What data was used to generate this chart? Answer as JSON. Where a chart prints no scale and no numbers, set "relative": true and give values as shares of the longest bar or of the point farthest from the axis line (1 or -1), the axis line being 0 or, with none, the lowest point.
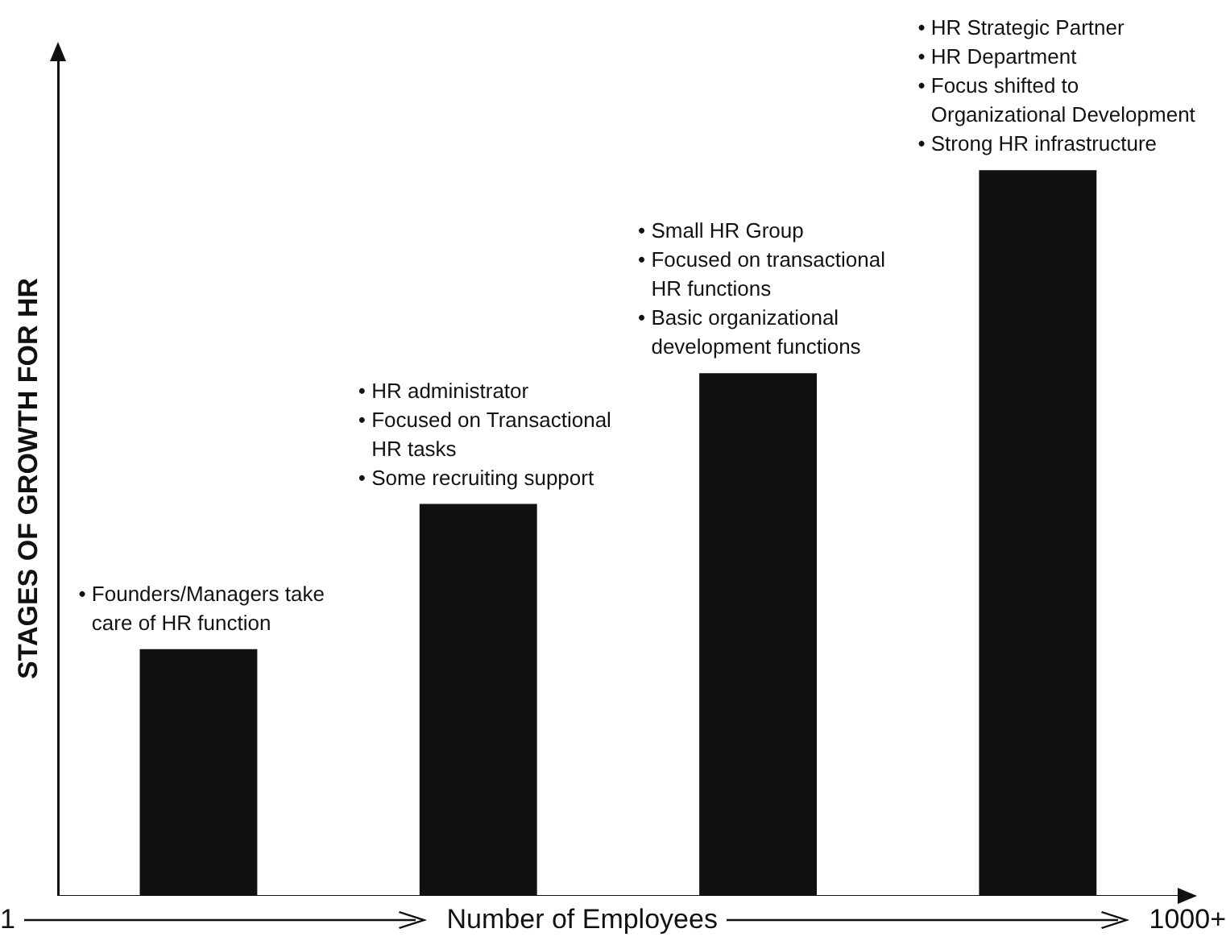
{
  "chart_data": {
    "type": "bar",
    "relative": true,
    "ylabel": "STAGES OF GROWTH FOR HR",
    "xlabel": "Number of Employees",
    "categories": [
      null,
      null,
      null,
      null
    ],
    "values": [
      0.34,
      0.54,
      0.72,
      1
    ],
    "color": "#111111",
    "grid": false,
    "annotations": [
      "• Founders/Managers take\ncare of HR function",
      "• HR administrator\n• Focused on Transactional\nHR tasks\n• Some recruiting support",
      "• Small HR Group\n• Focused on transactional\nHR functions\n• Basic organizational\ndevelopment functions",
      "• HR Strategic Partner\n• HR Department\n• Focus shifted to\nOrganizational Development\n• Strong HR infrastructure",
      "1",
      "1000+"
    ]
  }
}
